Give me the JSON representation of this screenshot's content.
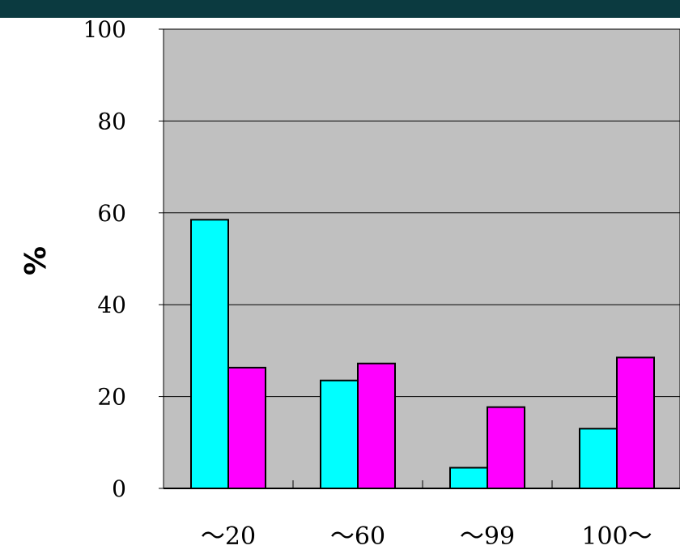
{
  "chart_data": {
    "type": "bar",
    "categories": [
      "～20",
      "～60",
      "～99",
      "100～"
    ],
    "series": [
      {
        "color": "#00ffff",
        "values": [
          58.5,
          23.5,
          4.5,
          13.0
        ]
      },
      {
        "color": "#ff00ff",
        "values": [
          26.3,
          27.2,
          17.7,
          28.5
        ]
      }
    ],
    "ylabel": "%",
    "ylim": [
      0,
      100
    ],
    "yticks": [
      "0",
      "20",
      "40",
      "60",
      "80",
      "100"
    ],
    "grid": true,
    "plot_background": "#c0c0c0",
    "header_band_color": "#0b3a40"
  }
}
